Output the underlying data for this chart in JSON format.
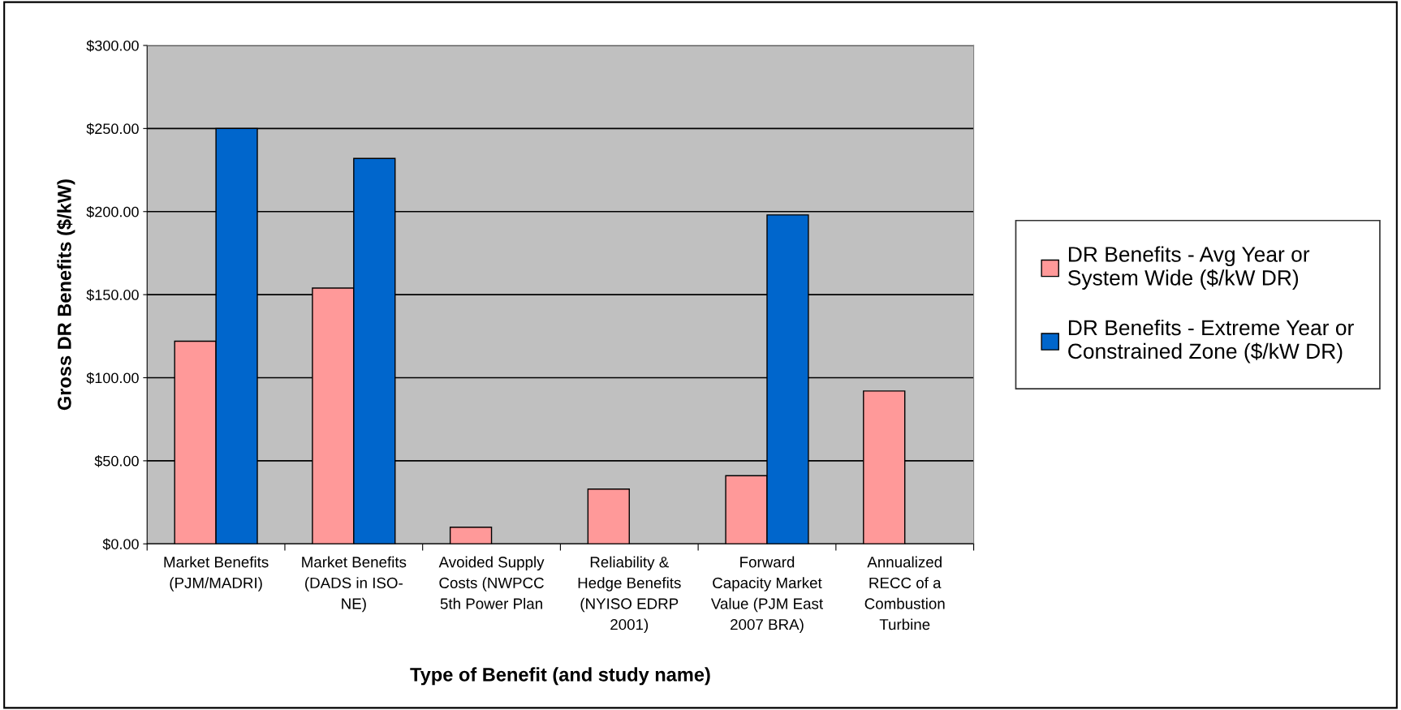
{
  "chart_data": {
    "type": "bar",
    "xlabel": "Type of Benefit (and study name)",
    "ylabel": "Gross DR Benefits ($/kW)",
    "categories": [
      "Market Benefits\n(PJM/MADRI)",
      "Market Benefits\n(DADS in ISO-\nNE)",
      "Avoided Supply\nCosts (NWPCC\n5th Power Plan",
      "Reliability &\nHedge Benefits\n(NYISO EDRP\n2001)",
      "Forward\nCapacity Market\nValue (PJM East\n2007 BRA)",
      "Annualized\nRECC of a\nCombustion\nTurbine"
    ],
    "series": [
      {
        "name": "DR Benefits - Avg Year or\nSystem Wide ($/kW DR)",
        "color": "#ff9999",
        "values": [
          122,
          154,
          10,
          33,
          41,
          92
        ]
      },
      {
        "name": "DR Benefits - Extreme Year or\nConstrained Zone ($/kW DR)",
        "color": "#0066cc",
        "values": [
          250,
          232,
          null,
          null,
          198,
          null
        ]
      }
    ],
    "ylim": [
      0,
      300
    ],
    "yticks": [
      {
        "value": 0,
        "label": "$0.00"
      },
      {
        "value": 50,
        "label": "$50.00"
      },
      {
        "value": 100,
        "label": "$100.00"
      },
      {
        "value": 150,
        "label": "$150.00"
      },
      {
        "value": 200,
        "label": "$200.00"
      },
      {
        "value": 250,
        "label": "$250.00"
      },
      {
        "value": 300,
        "label": "$300.00"
      }
    ],
    "grid": "y",
    "legend": "right"
  }
}
